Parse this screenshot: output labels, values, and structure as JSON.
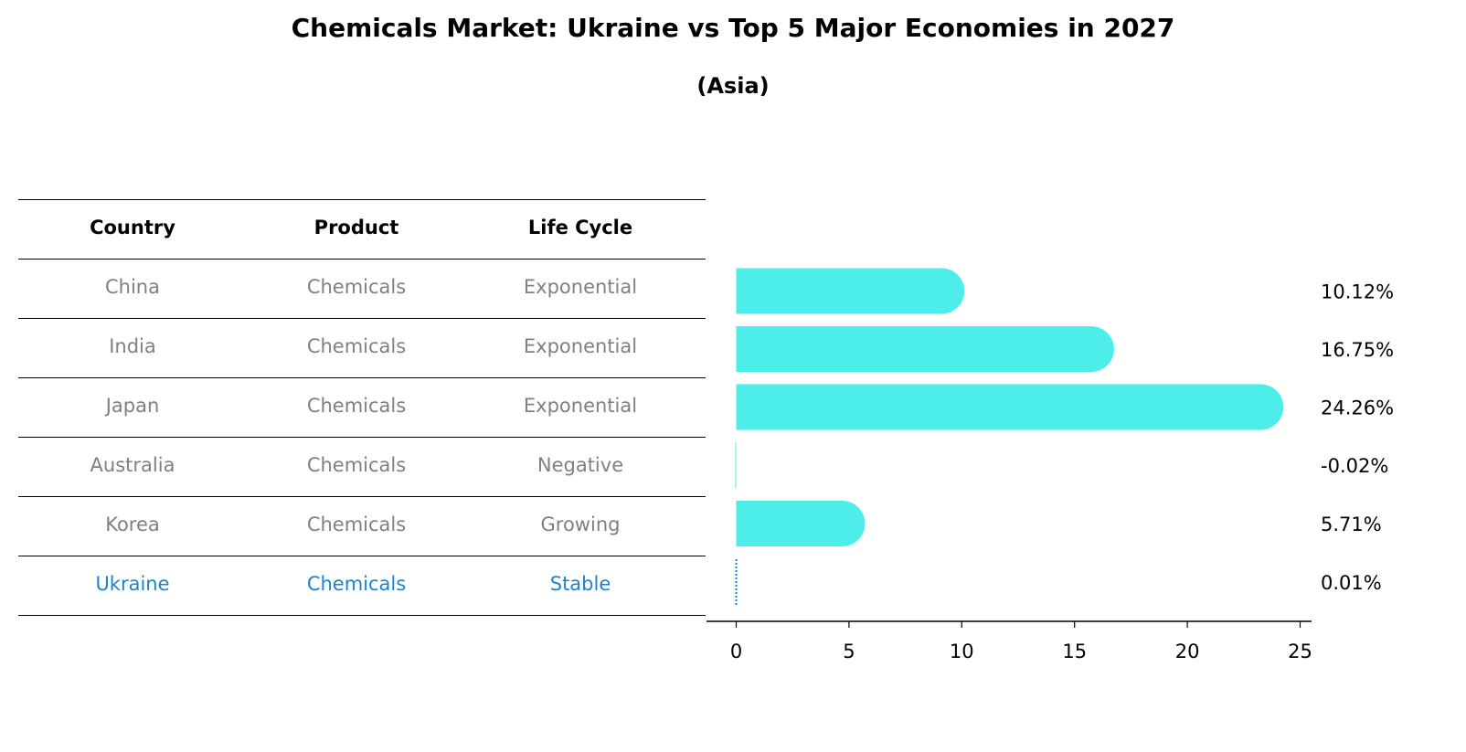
{
  "title": "Chemicals Market: Ukraine vs Top 5 Major Economies in 2027",
  "subtitle": "(Asia)",
  "table": {
    "headers": [
      "Country",
      "Product",
      "Life Cycle"
    ],
    "rows": [
      [
        "China",
        "Chemicals",
        "Exponential"
      ],
      [
        "India",
        "Chemicals",
        "Exponential"
      ],
      [
        "Japan",
        "Chemicals",
        "Exponential"
      ],
      [
        "Australia",
        "Chemicals",
        "Negative"
      ],
      [
        "Korea",
        "Chemicals",
        "Growing"
      ],
      [
        "Ukraine",
        "Chemicals",
        "Stable"
      ]
    ],
    "highlight_row": 5
  },
  "colors": {
    "bar": "#4deeea",
    "highlight": "#1e82d2",
    "muted_text": "#808080"
  },
  "chart_data": {
    "type": "bar",
    "orientation": "horizontal",
    "categories": [
      "China",
      "India",
      "Japan",
      "Australia",
      "Korea",
      "Ukraine"
    ],
    "values": [
      10.12,
      16.75,
      24.26,
      -0.02,
      5.71,
      0.01
    ],
    "value_labels": [
      "10.12%",
      "16.75%",
      "24.26%",
      "-0.02%",
      "5.71%",
      "0.01%"
    ],
    "xlim": [
      -1.3,
      25.6
    ],
    "xticks": [
      0,
      5,
      10,
      15,
      20,
      25
    ],
    "xlabel": "",
    "ylabel": "",
    "grid": false
  }
}
